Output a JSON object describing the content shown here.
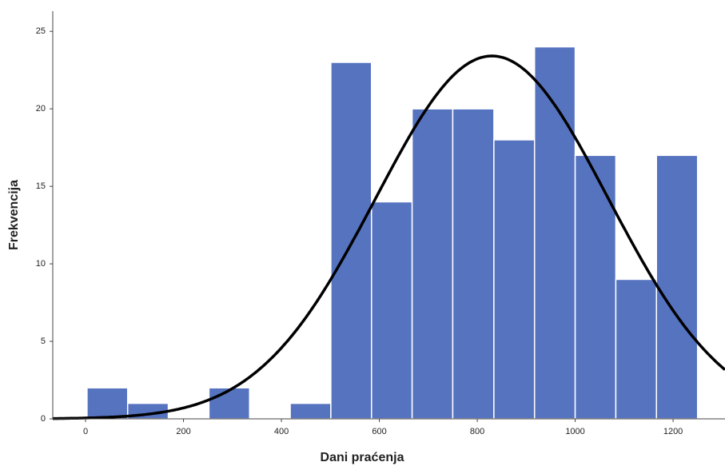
{
  "chart_data": {
    "type": "histogram",
    "x_label": "Dani praćenja",
    "y_label": "Frekvencija",
    "bins": [
      3,
      86,
      169,
      252,
      335,
      418,
      501,
      584,
      667,
      750,
      834,
      917,
      1000,
      1083,
      1166,
      1250
    ],
    "values": [
      2,
      1,
      0,
      2,
      0,
      1,
      23,
      14,
      20,
      20,
      18,
      24,
      17,
      9,
      17
    ],
    "color": "#5673c0",
    "normal_curve": {
      "mean": 830,
      "sd": 238,
      "color": "#000000"
    },
    "xlim": [
      -67,
      1306
    ],
    "xticks": [
      0,
      200,
      400,
      600,
      800,
      1000,
      1200
    ],
    "ylim": [
      0,
      26.3
    ],
    "yticks": [
      0,
      5,
      10,
      15,
      20,
      25
    ]
  }
}
